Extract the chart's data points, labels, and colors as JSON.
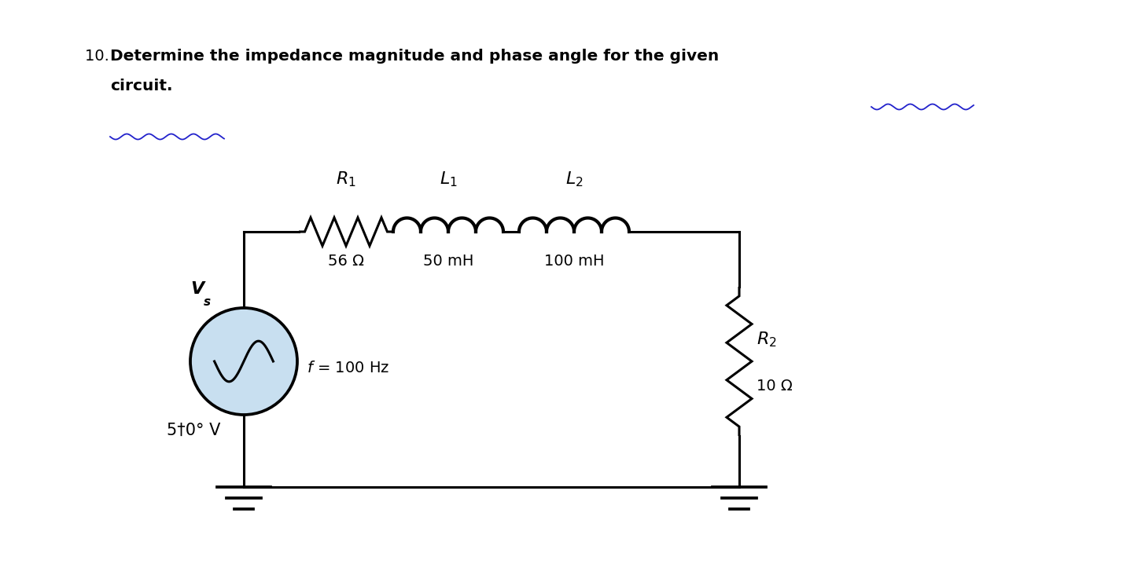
{
  "title_num": "10. ",
  "title_text": "Determine the impedance magnitude and phase angle for the given",
  "title_line2": "circuit.",
  "bg_color": "#ffffff",
  "R1_label": "$R_1$",
  "L1_label": "$L_1$",
  "L2_label": "$L_2$",
  "R2_label": "$R_2$",
  "R1_value": "56 Ω",
  "L1_value": "50 mH",
  "L2_value": "100 mH",
  "R2_value": "10 Ω",
  "Vs_label_main": "V",
  "Vs_label_sub": "s",
  "source_label": "5†0° V",
  "freq_label": "$f$ = 100 Hz",
  "underline_color": "#2222cc",
  "circle_fill": "#c8dff0",
  "lw": 2.2
}
